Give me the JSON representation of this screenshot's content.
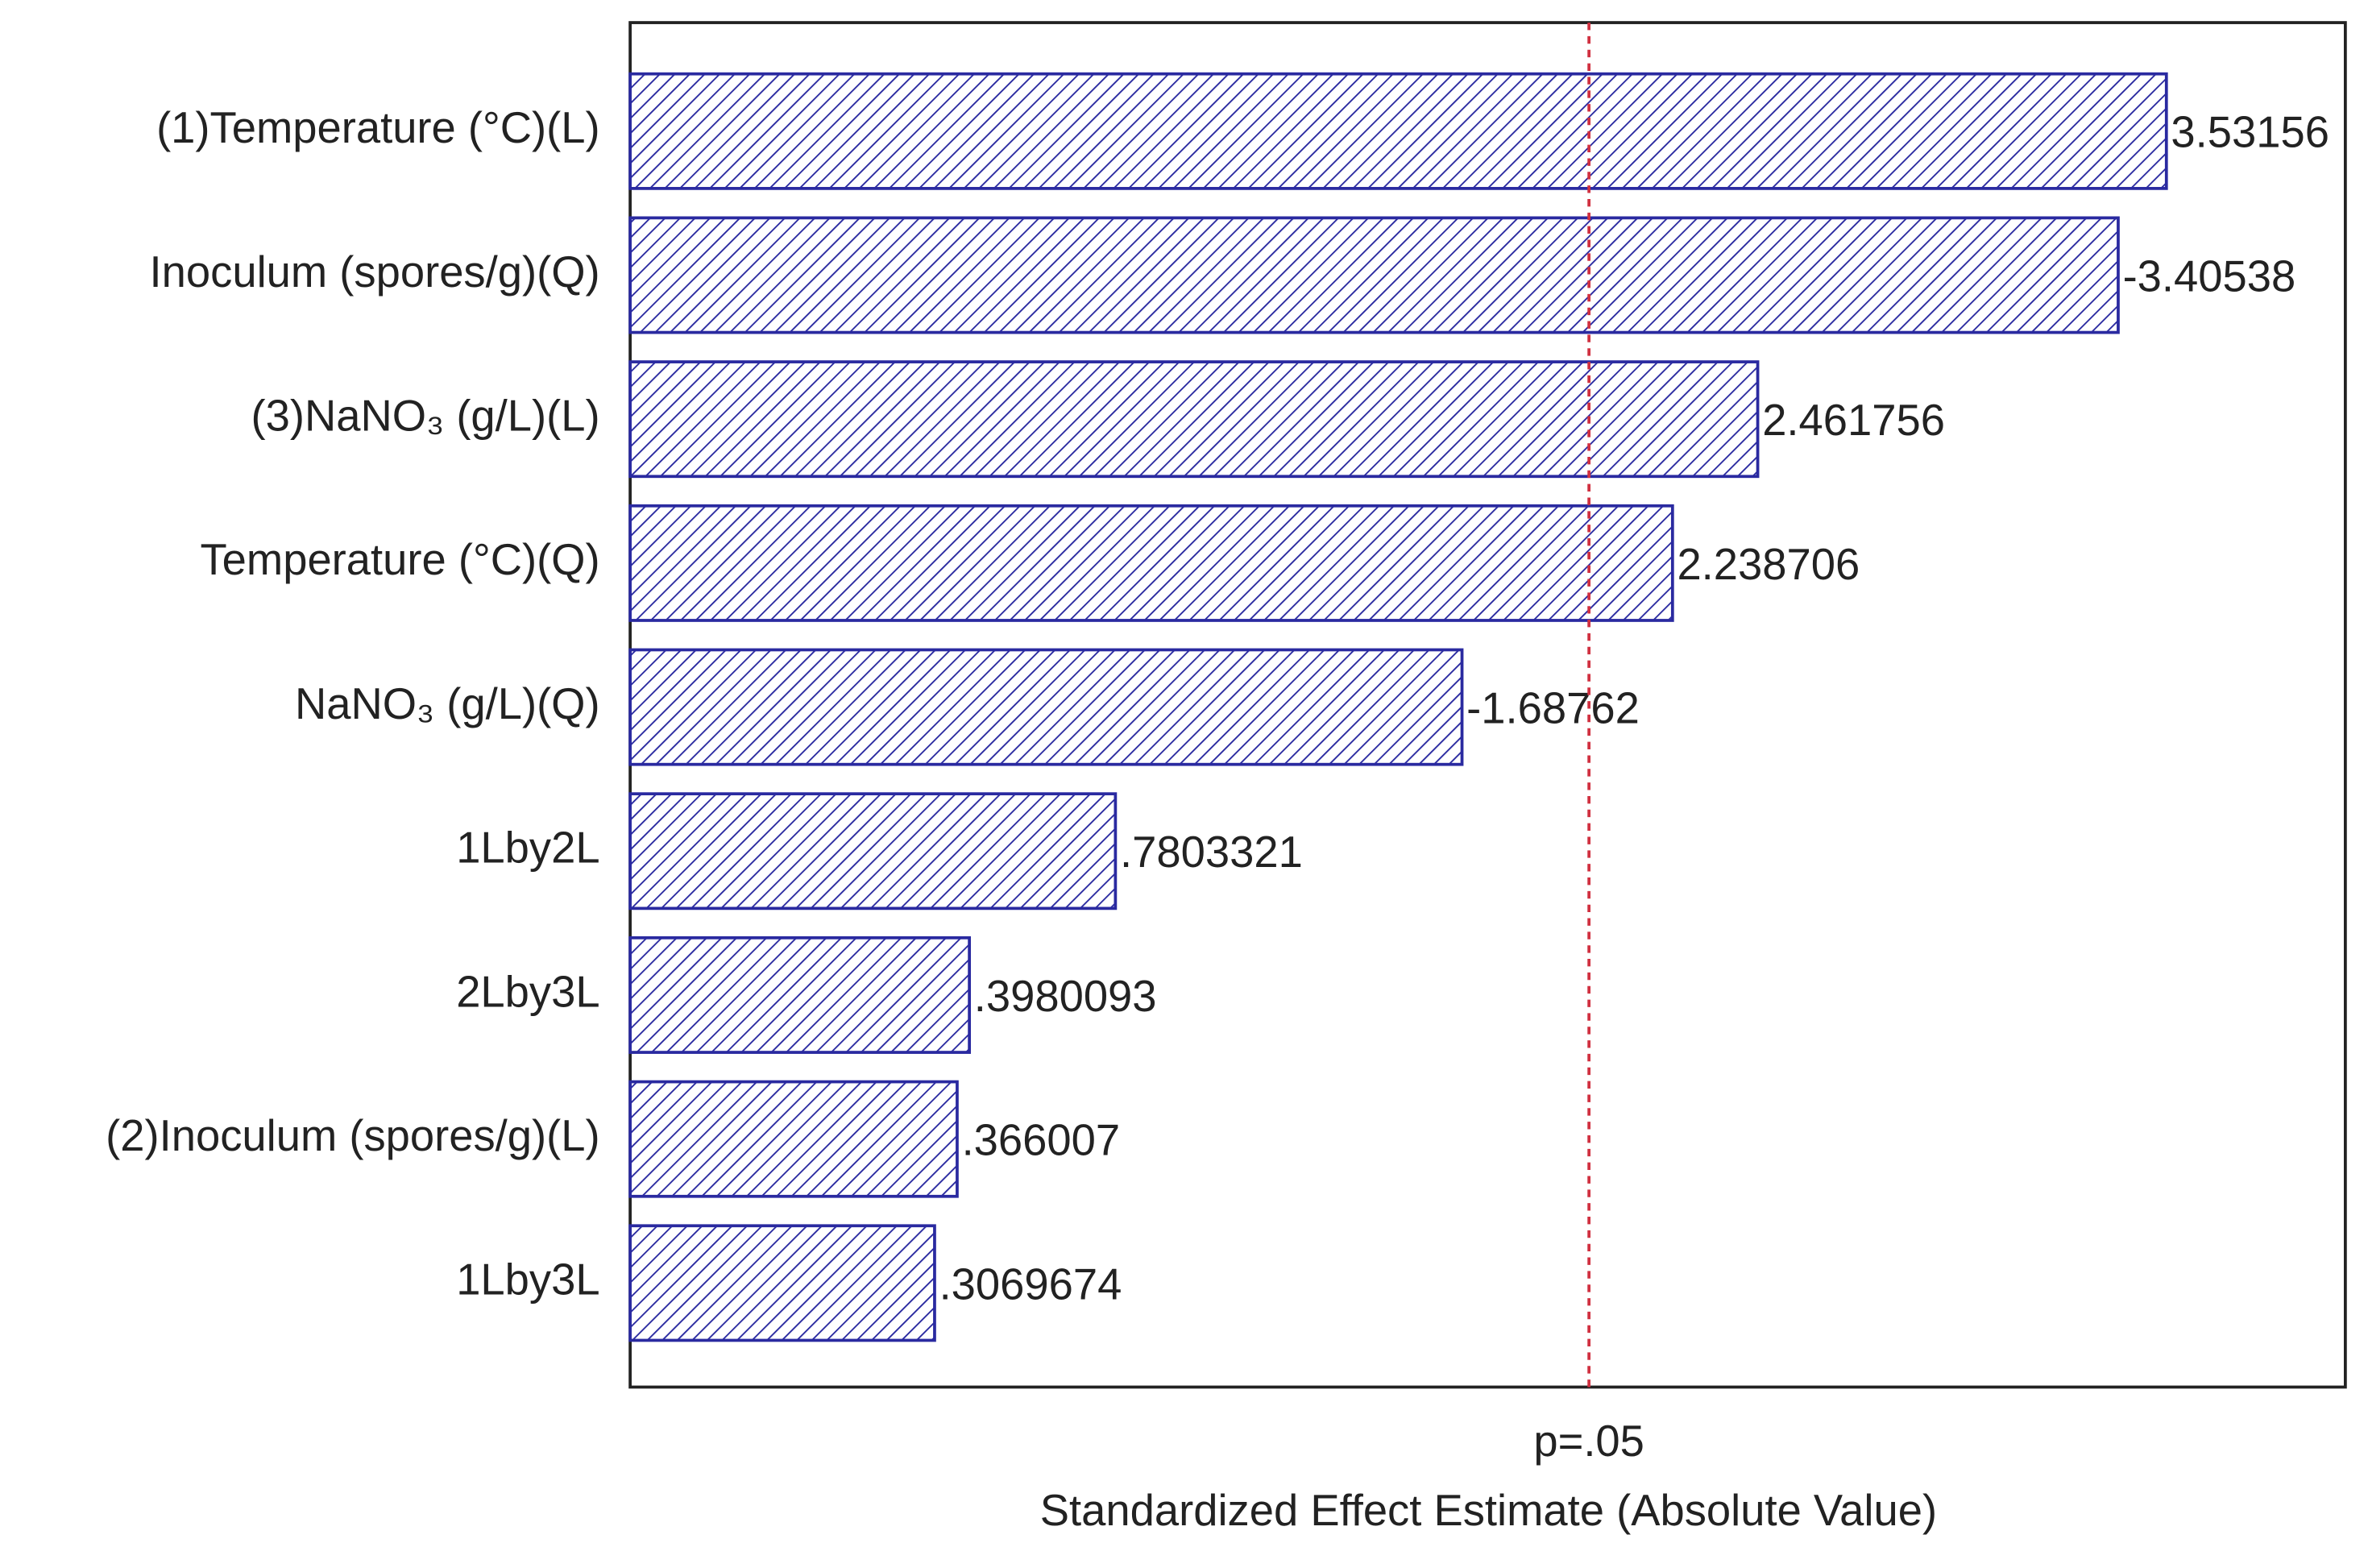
{
  "chart_data": {
    "type": "bar",
    "orientation": "horizontal",
    "categories": [
      "(1)Temperature (°C)(L)",
      "Inoculum (spores/g)(Q)",
      "(3)NaNO₃ (g/L)(L)",
      "Temperature (°C)(Q)",
      "NaNO₃ (g/L)(Q)",
      "1Lby2L",
      "2Lby3L",
      "(2)Inoculum (spores/g)(L)",
      "1Lby3L"
    ],
    "values": [
      3.53156,
      -3.40538,
      2.461756,
      2.238706,
      -1.68762,
      0.7803321,
      0.3980093,
      0.366007,
      0.3069674
    ],
    "value_labels": [
      "3.53156",
      "-3.40538",
      "2.461756",
      "2.238706",
      "-1.68762",
      ".7803321",
      ".3980093",
      ".366007",
      ".3069674"
    ],
    "color": "#2a2aa0",
    "xlim": [
      -0.49,
      4.0
    ],
    "xlabel": "Standardized Effect Estimate (Absolute Value)",
    "reference_line": {
      "value": 2.02,
      "label": "p=.05",
      "color": "#d03040"
    }
  }
}
